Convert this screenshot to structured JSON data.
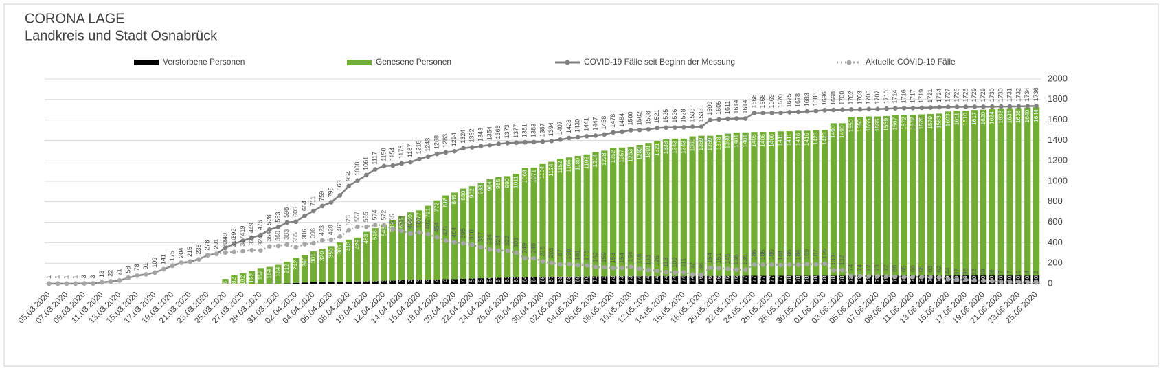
{
  "chart_data": {
    "type": "combo",
    "title": "CORONA LAGE",
    "subtitle": "Landkreis und Stadt Osnabrück",
    "categories": [
      "05.03.2020",
      null,
      "07.03.2020",
      null,
      "09.03.2020",
      null,
      "11.03.2020",
      null,
      "13.03.2020",
      null,
      "15.03.2020",
      null,
      "17.03.2020",
      null,
      "19.03.2020",
      null,
      "21.03.2020",
      null,
      "23.03.2020",
      null,
      "25.03.2020",
      null,
      "27.03.2020",
      null,
      "29.03.2020",
      null,
      "31.03.2020",
      null,
      "02.04.2020",
      null,
      "04.04.2020",
      null,
      "06.04.2020",
      null,
      "08.04.2020",
      null,
      "10.04.2020",
      null,
      "12.04.2020",
      null,
      "14.04.2020",
      null,
      "16.04.2020",
      null,
      "18.04.2020",
      null,
      "20.04.2020",
      null,
      "22.04.2020",
      null,
      "24.04.2020",
      null,
      "26.04.2020",
      null,
      "28.04.2020",
      null,
      "30.04.2020",
      null,
      "02.05.2020",
      null,
      "04.05.2020",
      null,
      "06.05.2020",
      null,
      "08.05.2020",
      null,
      "10.05.2020",
      null,
      "12.05.2020",
      null,
      "14.05.2020",
      null,
      "16.05.2020",
      null,
      "18.05.2020",
      null,
      "20.05.2020",
      null,
      "22.05.2020",
      null,
      "24.05.2020",
      null,
      "26.05.2020",
      null,
      "28.05.2020",
      null,
      "30.05.2020",
      null,
      "01.06.2020",
      null,
      "03.06.2020",
      null,
      "05.06.2020",
      null,
      "07.06.2020",
      null,
      "09.06.2020",
      null,
      "11.06.2020",
      null,
      "13.06.2020",
      null,
      "15.06.2020",
      null,
      "17.06.2020",
      null,
      "19.06.2020",
      null,
      "21.06.2020",
      null,
      "23.06.2020",
      null,
      "25.06.2020"
    ],
    "series": [
      {
        "name": "Verstorbene Personen",
        "type": "bar",
        "color": "#000000",
        "values": [
          null,
          null,
          null,
          null,
          null,
          null,
          null,
          null,
          null,
          null,
          null,
          null,
          null,
          null,
          null,
          null,
          null,
          null,
          null,
          null,
          null,
          null,
          null,
          null,
          null,
          null,
          null,
          3,
          8,
          12,
          14,
          16,
          17,
          17,
          18,
          22,
          23,
          25,
          30,
          30,
          34,
          37,
          39,
          40,
          42,
          44,
          45,
          49,
          50,
          53,
          56,
          57,
          61,
          63,
          64,
          64,
          65,
          67,
          68,
          68,
          69,
          70,
          71,
          71,
          73,
          73,
          73,
          74,
          74,
          74,
          74,
          74,
          74,
          74,
          76,
          76,
          76,
          76,
          76,
          77,
          77,
          77,
          77,
          77,
          78,
          78,
          78,
          78,
          78,
          78,
          78,
          78,
          79,
          79,
          79,
          79,
          79,
          79,
          79,
          79,
          79,
          79,
          79,
          80,
          80,
          80,
          80,
          80,
          80,
          80,
          80,
          80,
          80
        ]
      },
      {
        "name": "Genesene Personen",
        "type": "bar",
        "color": "#70ad32",
        "values": [
          null,
          null,
          null,
          null,
          null,
          null,
          null,
          null,
          null,
          null,
          null,
          null,
          null,
          null,
          null,
          null,
          null,
          null,
          null,
          null,
          46,
          82,
          102,
          122,
          152,
          164,
          184,
          212,
          242,
          266,
          301,
          320,
          350,
          385,
          413,
          429,
          483,
          518,
          548,
          589,
          625,
          660,
          677,
          721,
          772,
          818,
          845,
          880,
          902,
          933,
          964,
          985,
          990,
          1011,
          1068,
          1071,
          1104,
          1124,
          1152,
          1165,
          1180,
          1193,
          1214,
          1228,
          1252,
          1257,
          1263,
          1282,
          1301,
          1321,
          1338,
          1343,
          1343,
          1365,
          1369,
          1369,
          1378,
          1390,
          1401,
          1401,
          1405,
          1406,
          1406,
          1411,
          1411,
          1416,
          1416,
          1423,
          1423,
          1490,
          1490,
          1550,
          1550,
          1555,
          1555,
          1559,
          1567,
          1572,
          1572,
          1575,
          1579,
          1583,
          1603,
          1611,
          1610,
          1617,
          1620,
          1624,
          1633,
          1634,
          1636,
          1640,
          1644
        ]
      },
      {
        "name": "COVID-19 Fälle seit Beginn der Messung",
        "type": "line",
        "color": "#808080",
        "values": [
          1,
          1,
          1,
          1,
          3,
          3,
          13,
          22,
          31,
          58,
          78,
          91,
          109,
          141,
          175,
          204,
          215,
          238,
          278,
          291,
          349,
          392,
          419,
          449,
          476,
          528,
          553,
          598,
          605,
          664,
          711,
          759,
          795,
          863,
          954,
          1008,
          1061,
          1117,
          1150,
          1154,
          1175,
          1187,
          1218,
          1243,
          1268,
          1283,
          1294,
          1324,
          1332,
          1343,
          1354,
          1366,
          1373,
          1377,
          1381,
          1383,
          1387,
          1394,
          1407,
          1423,
          1430,
          1441,
          1447,
          1458,
          1478,
          1484,
          1500,
          1502,
          1508,
          1521,
          1525,
          1526,
          1528,
          1533,
          1533,
          1599,
          1605,
          1611,
          1614,
          1614,
          1668,
          1668,
          1669,
          1670,
          1675,
          1678,
          1683,
          1688,
          1696,
          1698,
          1700,
          1702,
          1703,
          1706,
          1707,
          1710,
          1714,
          1716,
          1717,
          1719,
          1721,
          1724,
          1727,
          1728,
          1728,
          1729,
          1729,
          1730,
          1730,
          1731,
          1732,
          1734,
          1736
        ]
      },
      {
        "name": "Aktuelle COVID-19 Fälle",
        "type": "dotted-line",
        "color": "#a6a6a6",
        "values": [
          1,
          1,
          1,
          1,
          3,
          3,
          13,
          22,
          31,
          58,
          78,
          91,
          109,
          141,
          175,
          204,
          215,
          238,
          278,
          291,
          303,
          310,
          317,
          327,
          324,
          364,
          369,
          383,
          355,
          386,
          396,
          423,
          428,
          461,
          523,
          557,
          555,
          574,
          572,
          535,
          516,
          490,
          502,
          482,
          454,
          421,
          404,
          395,
          380,
          357,
          334,
          324,
          322,
          303,
          249,
          248,
          218,
          203,
          187,
          190,
          181,
          178,
          162,
          159,
          153,
          154,
          164,
          146,
          133,
          126,
          113,
          109,
          111,
          92,
          88,
          154,
          151,
          145,
          136,
          136,
          186,
          185,
          186,
          181,
          186,
          184,
          189,
          187,
          195,
          130,
          132,
          74,
          74,
          72,
          73,
          72,
          68,
          65,
          66,
          65,
          63,
          62,
          44,
          37,
          38,
          32,
          29,
          26,
          17,
          17,
          16,
          14,
          12
        ]
      }
    ],
    "ylim": [
      0,
      2000
    ],
    "yticks": [
      0,
      200,
      400,
      600,
      800,
      1000,
      1200,
      1400,
      1600,
      1800,
      2000
    ],
    "y_axis_side": "right",
    "grid": true,
    "legend": "top"
  }
}
